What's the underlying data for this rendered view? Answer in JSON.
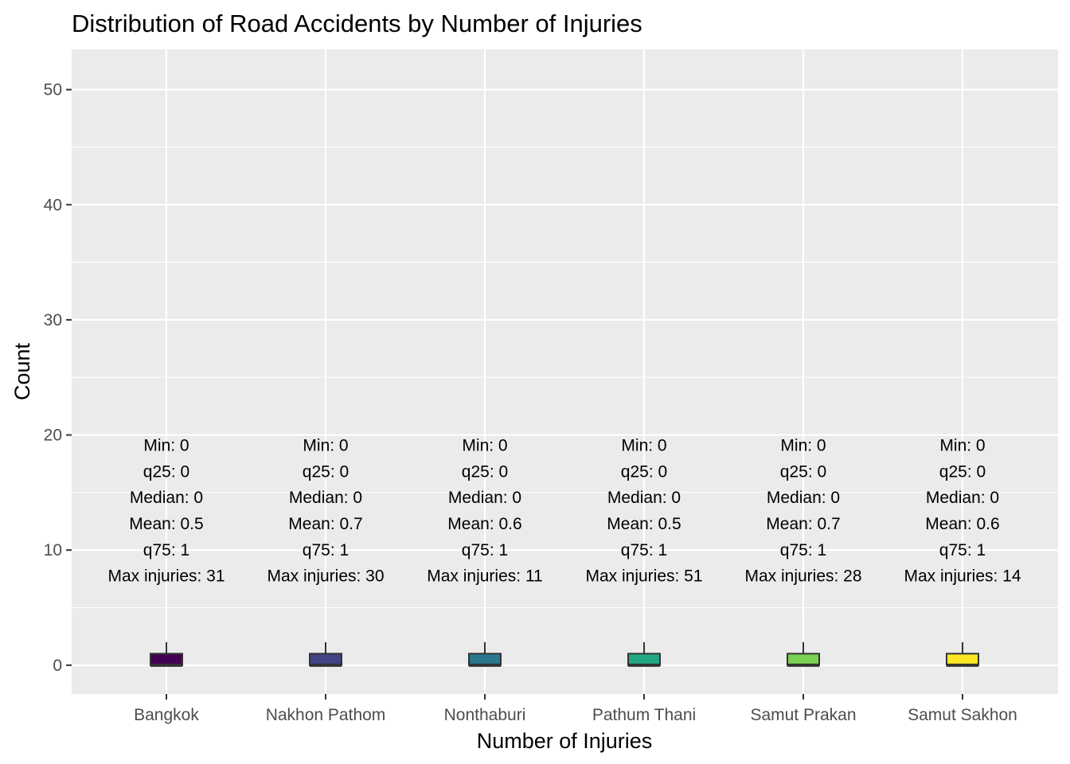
{
  "chart_data": {
    "type": "boxplot",
    "title": "Distribution of Road Accidents by Number of Injuries",
    "xlabel": "Number of Injuries",
    "ylabel": "Count",
    "ylim": [
      -2.5,
      53.5
    ],
    "yticks": [
      0,
      10,
      20,
      30,
      40,
      50
    ],
    "grid": true,
    "legend": "none",
    "categories": [
      "Bangkok",
      "Nakhon Pathom",
      "Nonthaburi",
      "Pathum Thani",
      "Samut Prakan",
      "Samut Sakhon"
    ],
    "colors": [
      "#440154",
      "#414487",
      "#2a788e",
      "#22a884",
      "#7ad151",
      "#fde725"
    ],
    "boxes": [
      {
        "min": 0,
        "q25": 0,
        "median": 0,
        "q75": 1,
        "whisker_high": 2
      },
      {
        "min": 0,
        "q25": 0,
        "median": 0,
        "q75": 1,
        "whisker_high": 2
      },
      {
        "min": 0,
        "q25": 0,
        "median": 0,
        "q75": 1,
        "whisker_high": 2
      },
      {
        "min": 0,
        "q25": 0,
        "median": 0,
        "q75": 1,
        "whisker_high": 2
      },
      {
        "min": 0,
        "q25": 0,
        "median": 0,
        "q75": 1,
        "whisker_high": 2
      },
      {
        "min": 0,
        "q25": 0,
        "median": 0,
        "q75": 1,
        "whisker_high": 2
      }
    ],
    "annotations": [
      [
        "Min: 0",
        "q25: 0",
        "Median: 0",
        "Mean: 0.5",
        "q75: 1",
        "Max injuries: 31"
      ],
      [
        "Min: 0",
        "q25: 0",
        "Median: 0",
        "Mean: 0.7",
        "q75: 1",
        "Max injuries: 30"
      ],
      [
        "Min: 0",
        "q25: 0",
        "Median: 0",
        "Mean: 0.6",
        "q75: 1",
        "Max injuries: 11"
      ],
      [
        "Min: 0",
        "q25: 0",
        "Median: 0",
        "Mean: 0.5",
        "q75: 1",
        "Max injuries: 51"
      ],
      [
        "Min: 0",
        "q25: 0",
        "Median: 0",
        "Mean: 0.7",
        "q75: 1",
        "Max injuries: 28"
      ],
      [
        "Min: 0",
        "q25: 0",
        "Median: 0",
        "Mean: 0.6",
        "q75: 1",
        "Max injuries: 14"
      ]
    ],
    "annotation_y_top": 20,
    "colors_theme": {
      "panel": "#ebebeb",
      "grid": "#ffffff",
      "tick": "#333333"
    }
  }
}
